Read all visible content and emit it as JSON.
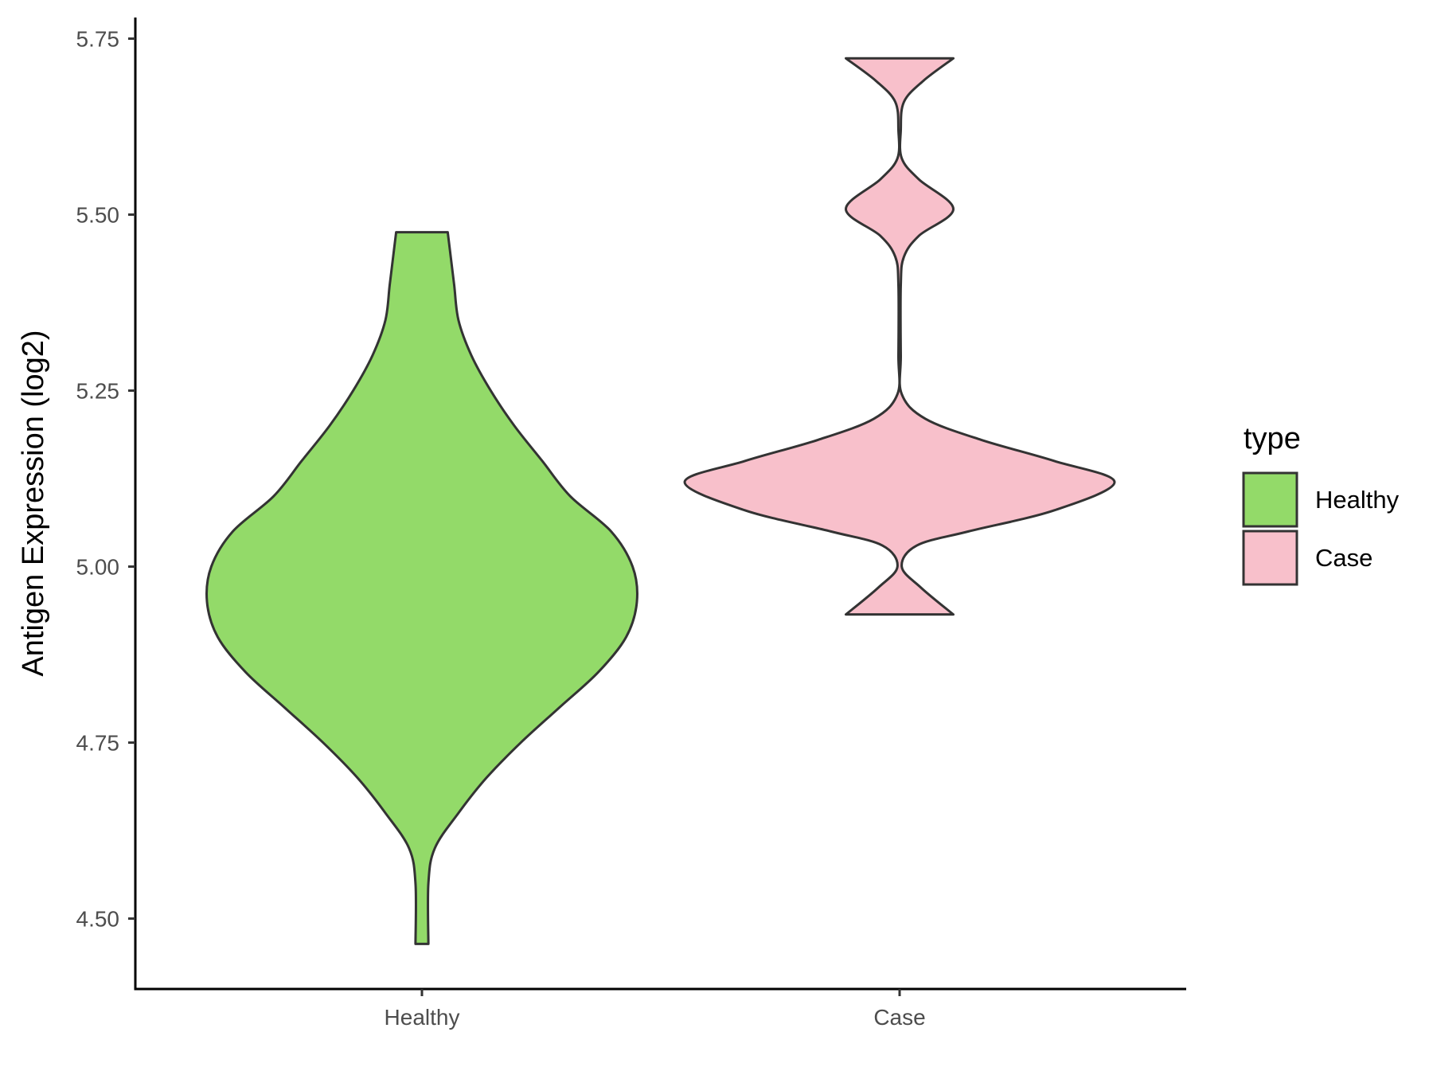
{
  "chart_data": {
    "type": "violin",
    "title": "",
    "xlabel": "",
    "ylabel": "Antigen Expression (log2)",
    "ylim": [
      4.4,
      5.78
    ],
    "yticks": [
      "4.50",
      "4.75",
      "5.00",
      "5.25",
      "5.50",
      "5.75"
    ],
    "categories": [
      "Healthy",
      "Case"
    ],
    "grid": false,
    "legend": {
      "title": "type",
      "position": "right",
      "entries": [
        "Healthy",
        "Case"
      ]
    },
    "series": [
      {
        "name": "Healthy",
        "color": "#93da69",
        "min": 4.464,
        "max": 5.475,
        "density": [
          [
            4.464,
            0.03
          ],
          [
            4.55,
            0.03
          ],
          [
            4.6,
            0.06
          ],
          [
            4.65,
            0.17
          ],
          [
            4.7,
            0.3
          ],
          [
            4.75,
            0.46
          ],
          [
            4.8,
            0.64
          ],
          [
            4.85,
            0.82
          ],
          [
            4.9,
            0.95
          ],
          [
            4.95,
            1.0
          ],
          [
            5.0,
            0.98
          ],
          [
            5.05,
            0.88
          ],
          [
            5.1,
            0.69
          ],
          [
            5.15,
            0.56
          ],
          [
            5.2,
            0.43
          ],
          [
            5.25,
            0.32
          ],
          [
            5.3,
            0.23
          ],
          [
            5.35,
            0.17
          ],
          [
            5.4,
            0.15
          ],
          [
            5.45,
            0.13
          ],
          [
            5.475,
            0.12
          ]
        ]
      },
      {
        "name": "Case",
        "color": "#f8c0cb",
        "min": 4.932,
        "max": 5.722,
        "density": [
          [
            4.932,
            0.25
          ],
          [
            4.97,
            0.1
          ],
          [
            5.0,
            0.01
          ],
          [
            5.03,
            0.08
          ],
          [
            5.05,
            0.32
          ],
          [
            5.08,
            0.72
          ],
          [
            5.12,
            1.0
          ],
          [
            5.15,
            0.72
          ],
          [
            5.18,
            0.38
          ],
          [
            5.21,
            0.12
          ],
          [
            5.245,
            0.01
          ],
          [
            5.3,
            0.0
          ],
          [
            5.4,
            0.0
          ],
          [
            5.44,
            0.02
          ],
          [
            5.47,
            0.09
          ],
          [
            5.508,
            0.25
          ],
          [
            5.55,
            0.09
          ],
          [
            5.58,
            0.01
          ],
          [
            5.62,
            0.0
          ],
          [
            5.66,
            0.02
          ],
          [
            5.69,
            0.11
          ],
          [
            5.722,
            0.25
          ]
        ]
      }
    ]
  }
}
